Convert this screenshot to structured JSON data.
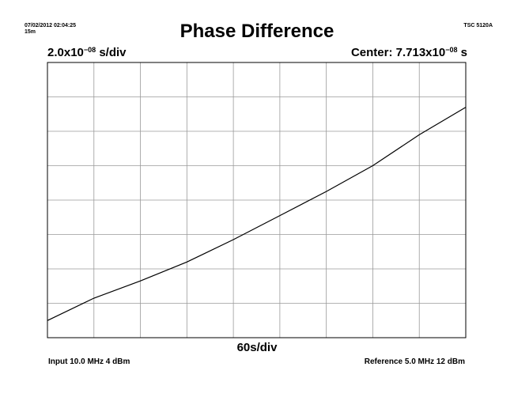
{
  "header": {
    "timestamp": "07/02/2012 02:04:25",
    "duration": "15m",
    "model": "TSC 5120A"
  },
  "chart_data": {
    "type": "line",
    "title": "Phase Difference",
    "y_scale": {
      "mantissa": "2.0x10",
      "exponent": "−08",
      "unit": " s/div"
    },
    "center": {
      "prefix": "Center: 7.713x10",
      "exponent": "−08",
      "unit": " s"
    },
    "x_scale": "60s/div",
    "x_divisions": 9,
    "y_divisions": 8,
    "xlim": [
      0,
      540
    ],
    "ylim": [
      -8e-08,
      8e-08
    ],
    "grid": true,
    "series": [
      {
        "x": [
          0,
          60,
          120,
          180,
          240,
          300,
          360,
          420,
          480,
          540
        ],
        "y": [
          -7e-08,
          -5.7e-08,
          -4.7e-08,
          -3.6e-08,
          -2.3e-08,
          -9e-09,
          5e-09,
          2e-08,
          3.8e-08,
          5.4e-08
        ]
      }
    ]
  },
  "footer": {
    "input": "Input 10.0 MHz 4 dBm",
    "reference": "Reference 5.0 MHz 12 dBm"
  }
}
